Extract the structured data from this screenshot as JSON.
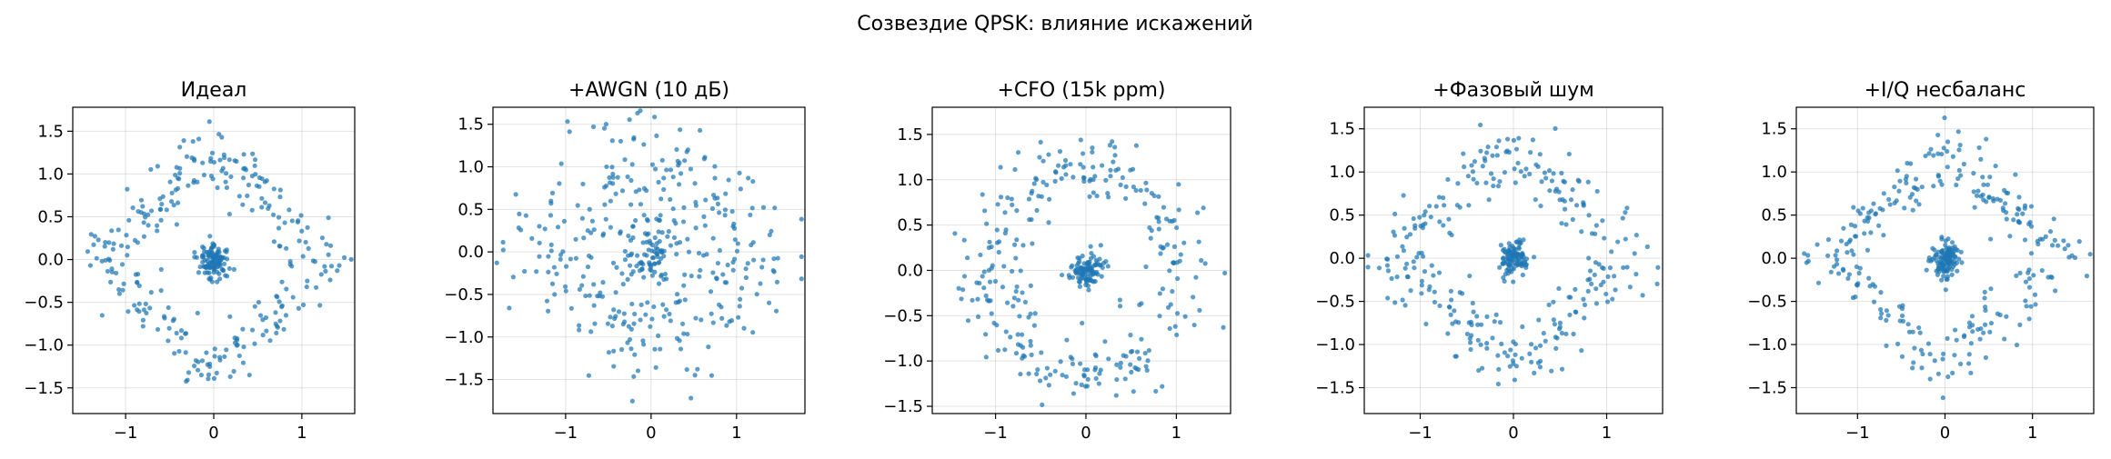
{
  "figure": {
    "suptitle": "Созвездие QPSK: влияние искажений"
  },
  "colors": {
    "points": "#1f77b4"
  },
  "chart_data": [
    {
      "type": "scatter",
      "title": "Идеал",
      "xlim": [
        -1.6,
        1.6
      ],
      "ylim": [
        -1.8,
        1.78
      ],
      "xticks": [
        -1,
        0,
        1
      ],
      "xtick_labels": [
        "−1",
        "0",
        "1"
      ],
      "yticks": [
        -1.5,
        -1.0,
        -0.5,
        0.0,
        0.5,
        1.0,
        1.5
      ],
      "ytick_labels": [
        "−1.5",
        "−1.0",
        "−0.5",
        "0.0",
        "0.5",
        "1.0",
        "1.5"
      ],
      "grid": true,
      "distortion": "none",
      "n_points": 400,
      "constellation": {
        "I": [
          0.0,
          0.0,
          0.0,
          0.0,
          0.0,
          1.0,
          -1.0,
          1.0,
          -1.0
        ],
        "Q": [
          0.0,
          1.0,
          -1.0,
          0.0,
          0.0,
          0.0,
          0.0,
          0.0,
          0.0
        ]
      }
    },
    {
      "type": "scatter",
      "title": "+AWGN (10 дБ)",
      "xlim": [
        -1.85,
        1.8
      ],
      "ylim": [
        -1.9,
        1.7
      ],
      "xticks": [
        -1,
        0,
        1
      ],
      "xtick_labels": [
        "−1",
        "0",
        "1"
      ],
      "yticks": [
        -1.5,
        -1.0,
        -0.5,
        0.0,
        0.5,
        1.0,
        1.5
      ],
      "ytick_labels": [
        "−1.5",
        "−1.0",
        "−0.5",
        "0.0",
        "0.5",
        "1.0",
        "1.5"
      ],
      "grid": true,
      "distortion": "awgn",
      "n_points": 400
    },
    {
      "type": "scatter",
      "title": "+CFO (15k ppm)",
      "xlim": [
        -1.7,
        1.6
      ],
      "ylim": [
        -1.58,
        1.8
      ],
      "xticks": [
        -1,
        0,
        1
      ],
      "xtick_labels": [
        "−1",
        "0",
        "1"
      ],
      "yticks": [
        -1.5,
        -1.0,
        -0.5,
        0.0,
        0.5,
        1.0,
        1.5
      ],
      "ytick_labels": [
        "−1.5",
        "−1.0",
        "−0.5",
        "0.0",
        "0.5",
        "1.0",
        "1.5"
      ],
      "grid": true,
      "distortion": "cfo",
      "n_points": 400
    },
    {
      "type": "scatter",
      "title": "+Фазовый шум",
      "xlim": [
        -1.6,
        1.6
      ],
      "ylim": [
        -1.8,
        1.75
      ],
      "xticks": [
        -1,
        0,
        1
      ],
      "xtick_labels": [
        "−1",
        "0",
        "1"
      ],
      "yticks": [
        -1.5,
        -1.0,
        -0.5,
        0.0,
        0.5,
        1.0,
        1.5
      ],
      "ytick_labels": [
        "−1.5",
        "−1.0",
        "−0.5",
        "0.0",
        "0.5",
        "1.0",
        "1.5"
      ],
      "grid": true,
      "distortion": "phase_noise",
      "n_points": 400
    },
    {
      "type": "scatter",
      "title": "+I/Q несбаланс",
      "xlim": [
        -1.7,
        1.7
      ],
      "ylim": [
        -1.8,
        1.75
      ],
      "xticks": [
        -1,
        0,
        1
      ],
      "xtick_labels": [
        "−1",
        "0",
        "1"
      ],
      "yticks": [
        -1.5,
        -1.0,
        -0.5,
        0.0,
        0.5,
        1.0,
        1.5
      ],
      "ytick_labels": [
        "−1.5",
        "−1.0",
        "−0.5",
        "0.0",
        "0.5",
        "1.0",
        "1.5"
      ],
      "grid": true,
      "distortion": "iq_imbalance",
      "n_points": 400
    }
  ]
}
